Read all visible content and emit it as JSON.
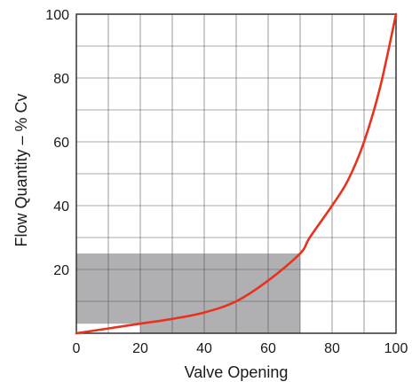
{
  "chart_data": {
    "type": "line",
    "xlabel": "Valve Opening",
    "ylabel": "Flow Quantity – % Cv",
    "xlim": [
      0,
      100
    ],
    "ylim": [
      0,
      100
    ],
    "x_ticks": [
      0,
      20,
      40,
      60,
      80,
      100
    ],
    "y_ticks": [
      20,
      40,
      60,
      80,
      100
    ],
    "grid": true,
    "grid_step": 10,
    "series": [
      {
        "color": "#e8321e",
        "x": [
          0,
          10,
          20,
          30,
          40,
          50,
          60,
          70,
          73,
          80,
          85,
          90,
          95,
          100
        ],
        "y": [
          0,
          1.5,
          3,
          4.5,
          6.5,
          10,
          16.5,
          25,
          30,
          40,
          48,
          60,
          77,
          100
        ]
      }
    ],
    "highlight_region": {
      "color": "#b0b0b3",
      "x": [
        0,
        70
      ],
      "y": [
        0,
        25
      ],
      "inner_x": [
        20,
        70
      ],
      "inner_y": [
        0,
        3
      ]
    }
  }
}
